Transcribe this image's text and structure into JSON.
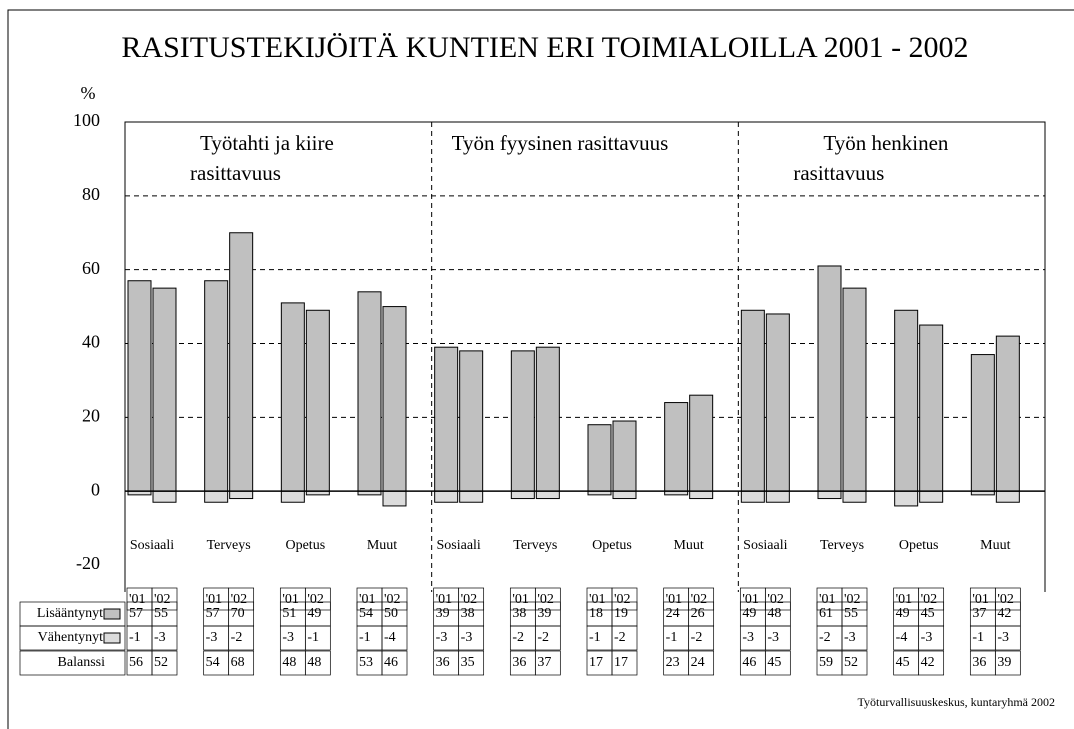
{
  "chart_data": {
    "type": "bar",
    "title": "RASITUSTEKIJÖITÄ KUNTIEN ERI TOIMIALOILLA 2001 - 2002",
    "y_label": "%",
    "source": "Työturvallisuuskeskus, kuntaryhmä 2002",
    "sections": [
      [
        "Työtahti ja kiire",
        "rasittavuus"
      ],
      [
        "Työn fyysinen rasittavuus"
      ],
      [
        "Työn henkinen",
        "rasittavuus"
      ]
    ],
    "categories": [
      "Sosiaali",
      "Terveys",
      "Opetus",
      "Muut",
      "Sosiaali",
      "Terveys",
      "Opetus",
      "Muut",
      "Sosiaali",
      "Terveys",
      "Opetus",
      "Muut"
    ],
    "x": [
      "'01",
      "'02",
      "'01",
      "'02",
      "'01",
      "'02",
      "'01",
      "'02",
      "'01",
      "'02",
      "'01",
      "'02",
      "'01",
      "'02",
      "'01",
      "'02",
      "'01",
      "'02",
      "'01",
      "'02",
      "'01",
      "'02",
      "'01",
      "'02"
    ],
    "series": [
      {
        "name": "Lisääntynyt",
        "color": "#c0c0c0",
        "values": [
          57,
          55,
          57,
          70,
          51,
          49,
          54,
          50,
          39,
          38,
          38,
          39,
          18,
          19,
          24,
          26,
          49,
          48,
          61,
          55,
          49,
          45,
          37,
          42
        ]
      },
      {
        "name": "Vähentynyt",
        "color": "#dcdcdc",
        "values": [
          -1,
          -3,
          -3,
          -2,
          -3,
          -1,
          -1,
          -4,
          -3,
          -3,
          -2,
          -2,
          -1,
          -2,
          -1,
          -2,
          -3,
          -3,
          -2,
          -3,
          -4,
          -3,
          -1,
          -3
        ]
      },
      {
        "name": "Balanssi",
        "values": [
          56,
          52,
          54,
          68,
          48,
          48,
          53,
          46,
          36,
          35,
          36,
          37,
          17,
          17,
          23,
          24,
          46,
          45,
          59,
          52,
          45,
          42,
          36,
          39
        ]
      }
    ],
    "ylim": [
      -20,
      100
    ],
    "yticks": [
      -20,
      0,
      20,
      40,
      60,
      80,
      100
    ],
    "grid": true
  }
}
